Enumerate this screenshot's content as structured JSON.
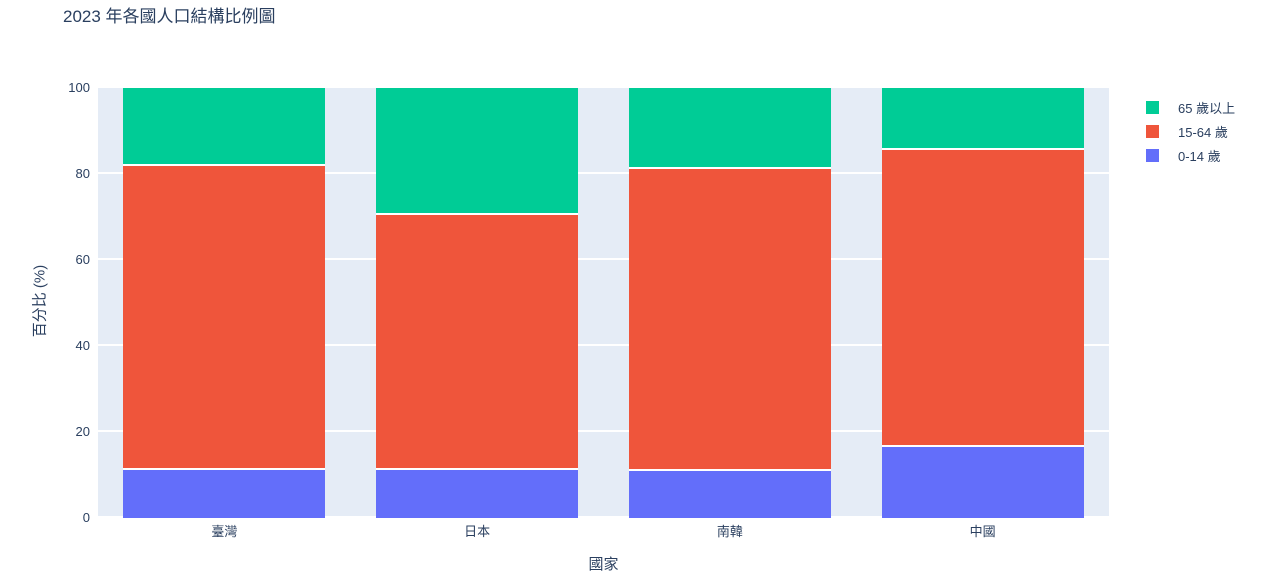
{
  "page": {
    "background_color": "#ffffff",
    "text_color": "#2a3f5f"
  },
  "chart_data": {
    "type": "bar",
    "barmode": "stack",
    "title": "2023 年各國人口結構比例圖",
    "xlabel": "國家",
    "ylabel": "百分比 (%)",
    "categories": [
      "臺灣",
      "日本",
      "南韓",
      "中國"
    ],
    "series": [
      {
        "name": "0-14 歲",
        "color": "#636EFA",
        "values": [
          11.2,
          11.2,
          10.9,
          16.6
        ]
      },
      {
        "name": "15-64 歲",
        "color": "#EF553B",
        "values": [
          70.6,
          59.2,
          70.2,
          69.0
        ]
      },
      {
        "name": "65 歲以上",
        "color": "#00CC96",
        "values": [
          18.2,
          29.6,
          18.9,
          14.4
        ]
      }
    ],
    "ylim": [
      0,
      100
    ],
    "yticks": [
      0,
      20,
      40,
      60,
      80,
      100
    ],
    "grid": true,
    "gridline_color": "#FFFFFF",
    "plot_background": "#E5ECF6",
    "legend_position": "right-top",
    "legend_order_top_to_bottom": [
      "65 歲以上",
      "15-64 歲",
      "0-14 歲"
    ]
  }
}
